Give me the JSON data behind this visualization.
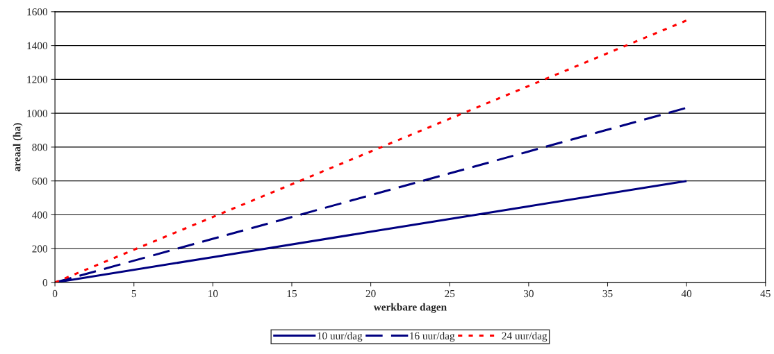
{
  "chart_data": {
    "type": "line",
    "xlabel": "werkbare dagen",
    "ylabel": "areaal (ha)",
    "x": [
      0,
      10,
      20,
      30,
      40
    ],
    "series": [
      {
        "name": "10 uur/dag",
        "color": "#000080",
        "line_style": "solid",
        "values": [
          0,
          150,
          300,
          450,
          600
        ]
      },
      {
        "name": "16 uur/dag",
        "color": "#000080",
        "line_style": "dashed",
        "values": [
          0,
          258,
          516,
          774,
          1032
        ]
      },
      {
        "name": "24 uur/dag",
        "color": "#ff0000",
        "line_style": "dotted",
        "values": [
          0,
          387,
          774,
          1161,
          1548
        ]
      }
    ],
    "xlim": [
      0,
      45
    ],
    "xticks": [
      0,
      5,
      10,
      15,
      20,
      25,
      30,
      35,
      40,
      45
    ],
    "ylim": [
      0,
      1600
    ],
    "yticks": [
      0,
      200,
      400,
      600,
      800,
      1000,
      1200,
      1400,
      1600
    ],
    "grid": "y",
    "legend": "bottom",
    "marker": "none"
  }
}
